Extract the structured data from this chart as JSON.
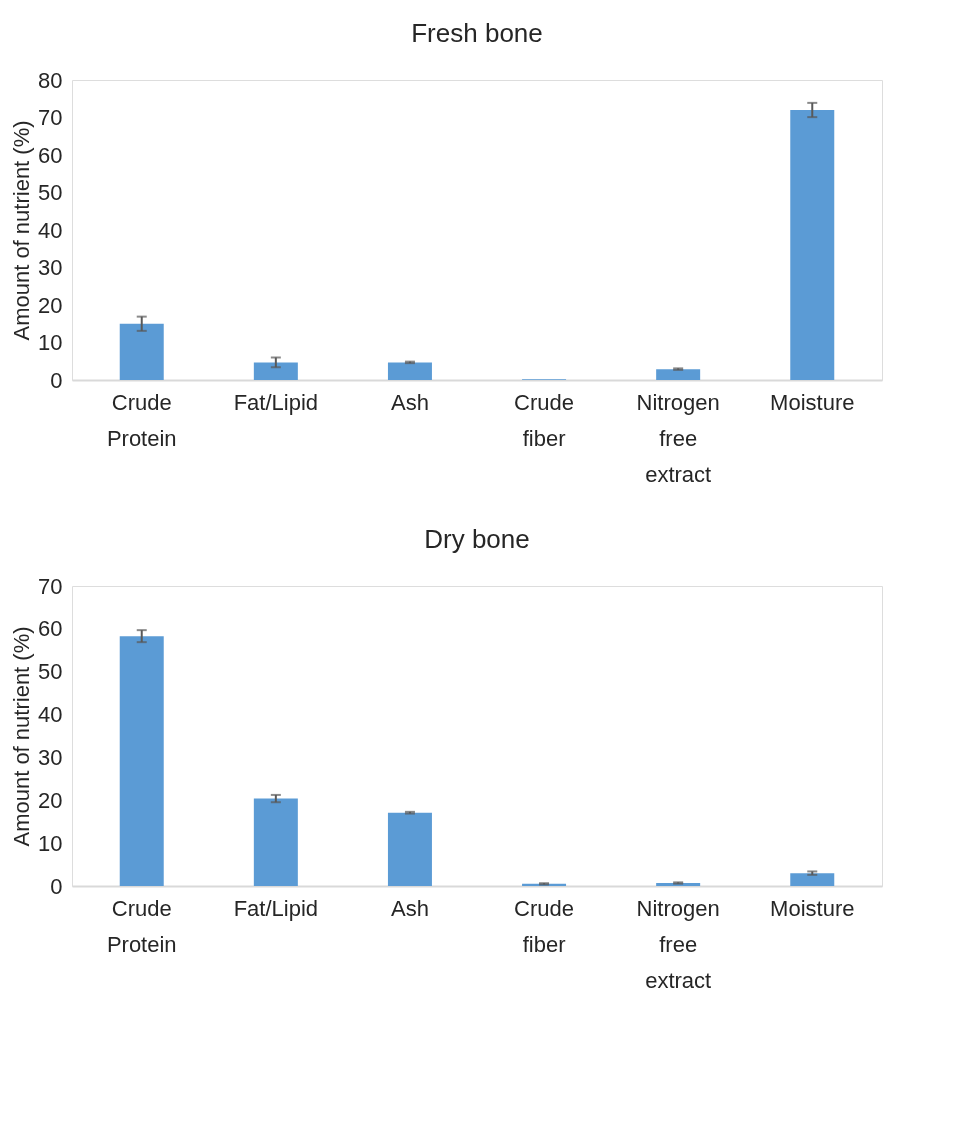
{
  "chart_data": [
    {
      "type": "bar",
      "title": "Fresh bone",
      "ylabel": "Amount of nutrient (%)",
      "categories": [
        "Crude Protein",
        "Fat/Lipid",
        "Ash",
        "Crude fiber",
        "Nitrogen free extract",
        "Moisture"
      ],
      "values": [
        15.0,
        4.7,
        4.7,
        0.2,
        2.9,
        72.0
      ],
      "errors": [
        1.9,
        1.3,
        0.2,
        null,
        0.2,
        1.9
      ],
      "color": "#5b9bd5",
      "ylim": [
        0,
        80
      ],
      "yticks": [
        0,
        10,
        20,
        30,
        40,
        50,
        60,
        70,
        80
      ],
      "grid": false
    },
    {
      "type": "bar",
      "title": "Dry bone",
      "ylabel": "Amount of nutrient (%)",
      "categories": [
        "Crude Protein",
        "Fat/Lipid",
        "Ash",
        "Crude fiber",
        "Nitrogen free extract",
        "Moisture"
      ],
      "values": [
        58.3,
        20.4,
        17.1,
        0.5,
        0.7,
        3.0
      ],
      "errors": [
        1.4,
        0.85,
        0.2,
        0.15,
        0.15,
        0.4
      ],
      "color": "#5b9bd5",
      "ylim": [
        0,
        70
      ],
      "yticks": [
        0,
        10,
        20,
        30,
        40,
        50,
        60,
        70
      ],
      "grid": false
    }
  ]
}
